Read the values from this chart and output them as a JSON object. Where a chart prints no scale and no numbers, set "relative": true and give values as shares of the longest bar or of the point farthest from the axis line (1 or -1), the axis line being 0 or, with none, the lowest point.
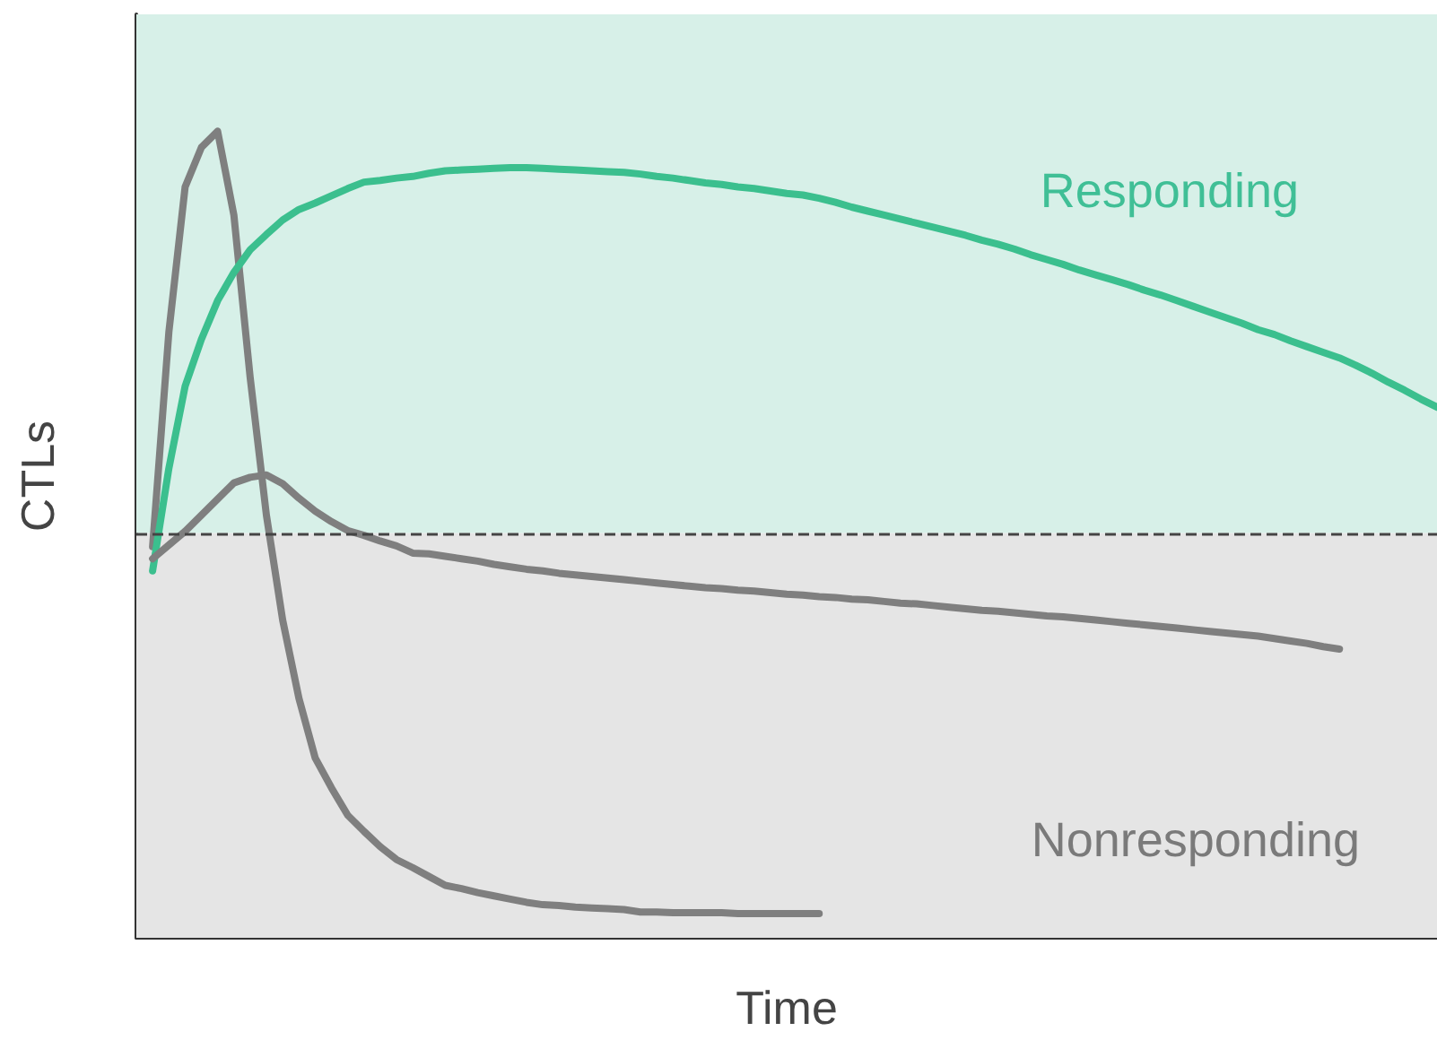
{
  "chart_data": {
    "type": "line",
    "relative": true,
    "xlabel": "Time",
    "ylabel": "CTLs",
    "tick_labels": false,
    "categories": [
      null,
      null,
      null,
      null,
      null,
      null,
      null,
      null,
      null,
      null,
      null,
      null,
      null,
      null,
      null,
      null,
      null,
      null,
      null,
      null,
      null,
      null,
      null,
      null,
      null,
      null,
      null,
      null,
      null,
      null,
      null,
      null,
      null,
      null,
      null,
      null,
      null,
      null,
      null,
      null,
      null,
      null,
      null,
      null,
      null,
      null,
      null,
      null,
      null,
      null,
      null,
      null,
      null,
      null,
      null,
      null,
      null,
      null,
      null,
      null,
      null,
      null,
      null,
      null,
      null,
      null,
      null,
      null,
      null,
      null,
      null,
      null,
      null,
      null,
      null,
      null,
      null,
      null,
      null,
      null,
      null
    ],
    "series": [
      {
        "color": "#7f7f7f",
        "values": [
          null,
          0.485,
          0.751,
          0.931,
          0.98,
          1,
          0.896,
          0.695,
          0.524,
          0.394,
          0.297,
          0.223,
          0.186,
          0.152,
          0.132,
          0.113,
          0.097,
          0.087,
          0.076,
          0.065,
          0.061,
          0.056,
          0.052,
          0.048,
          0.044,
          0.041,
          0.04,
          0.038,
          0.037,
          0.036,
          0.035,
          0.032,
          0.032,
          0.031,
          0.031,
          0.031,
          0.031,
          0.03,
          0.03,
          0.03,
          0.03,
          0.03,
          0.03,
          null,
          null,
          null,
          null,
          null,
          null,
          null,
          null,
          null,
          null,
          null,
          null,
          null,
          null,
          null,
          null,
          null,
          null,
          null,
          null,
          null,
          null,
          null,
          null,
          null,
          null,
          null,
          null,
          null,
          null,
          null,
          null,
          null,
          null,
          null,
          null,
          null,
          null
        ]
      },
      {
        "color": "#3bbf8e",
        "values": [
          null,
          0.455,
          0.582,
          0.684,
          0.742,
          0.79,
          0.825,
          0.853,
          0.872,
          0.89,
          0.903,
          0.911,
          0.92,
          0.929,
          0.937,
          0.939,
          0.942,
          0.944,
          0.948,
          0.951,
          0.952,
          0.953,
          0.954,
          0.955,
          0.955,
          0.954,
          0.953,
          0.952,
          0.951,
          0.95,
          0.949,
          0.947,
          0.944,
          0.942,
          0.939,
          0.936,
          0.934,
          0.931,
          0.929,
          0.926,
          0.923,
          0.921,
          0.917,
          0.912,
          0.906,
          0.901,
          0.896,
          0.891,
          0.886,
          0.881,
          0.876,
          0.871,
          0.865,
          0.86,
          0.854,
          0.847,
          0.841,
          0.835,
          0.828,
          0.822,
          0.816,
          0.81,
          0.803,
          0.797,
          0.79,
          0.783,
          0.776,
          0.769,
          0.762,
          0.754,
          0.748,
          0.74,
          0.733,
          0.726,
          0.719,
          0.71,
          0.7,
          0.689,
          0.679,
          0.668,
          0.658
        ]
      },
      {
        "color": "#7f7f7f",
        "values": [
          null,
          0.47,
          0.487,
          0.504,
          0.524,
          0.544,
          0.564,
          0.571,
          0.574,
          0.563,
          0.545,
          0.529,
          0.516,
          0.505,
          0.499,
          0.492,
          0.486,
          0.477,
          0.476,
          0.473,
          0.47,
          0.467,
          0.463,
          0.46,
          0.457,
          0.455,
          0.452,
          0.45,
          0.448,
          0.446,
          0.444,
          0.442,
          0.44,
          0.438,
          0.436,
          0.434,
          0.433,
          0.431,
          0.43,
          0.428,
          0.426,
          0.425,
          0.423,
          0.422,
          0.42,
          0.419,
          0.417,
          0.415,
          0.414,
          0.412,
          0.41,
          0.408,
          0.406,
          0.405,
          0.403,
          0.401,
          0.399,
          0.398,
          0.396,
          0.394,
          0.392,
          0.39,
          0.388,
          0.386,
          0.384,
          0.382,
          0.38,
          0.378,
          0.376,
          0.374,
          0.371,
          0.368,
          0.365,
          0.361,
          0.358,
          null,
          null,
          null,
          null,
          null,
          null
        ]
      }
    ],
    "ref_lines": [
      {
        "axis": "y",
        "value": 0.502,
        "color": "#444444",
        "line_style": "dashed"
      }
    ],
    "bands": [
      {
        "axis": "y",
        "from": 0,
        "to": 0.502,
        "label": "Nonresponding",
        "color": "#e5e5e5"
      },
      {
        "axis": "y",
        "from": 0.502,
        "to": 1.145,
        "label": "Responding",
        "color": "#d7f0e8"
      }
    ]
  }
}
